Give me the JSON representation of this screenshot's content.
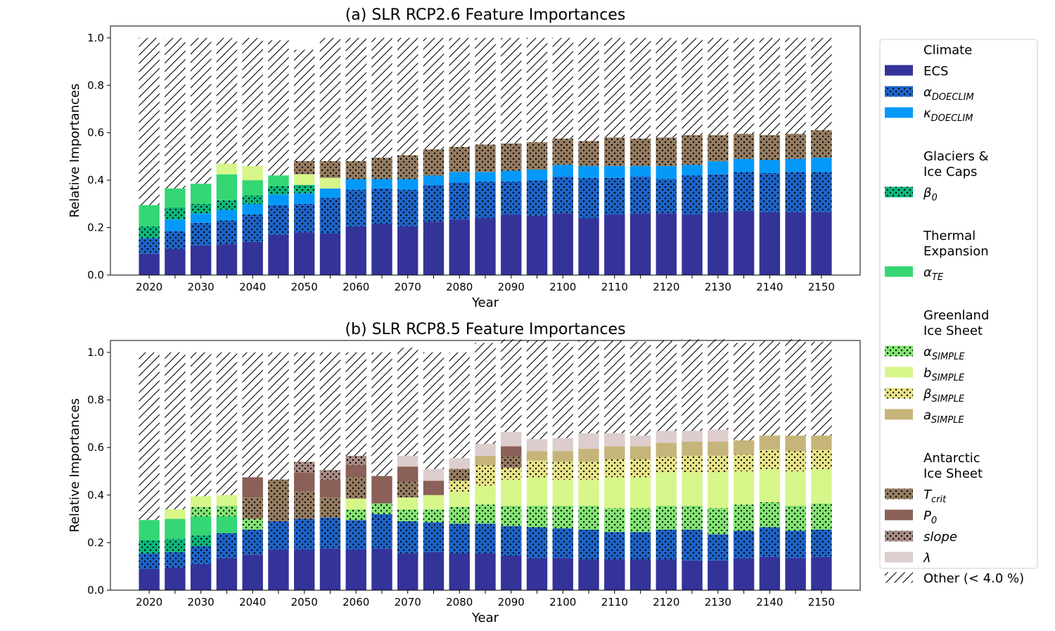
{
  "chart_data": [
    {
      "type": "bar",
      "stacked": true,
      "title": "(a) SLR RCP2.6 Feature Importances",
      "xlabel": "Year",
      "ylabel": "Relative Importances",
      "ylim": [
        0,
        1.05
      ],
      "yticks": [
        "0.0",
        "0.2",
        "0.4",
        "0.6",
        "0.8",
        "1.0"
      ],
      "xticks": [
        "2020",
        "2030",
        "2040",
        "2050",
        "2060",
        "2070",
        "2080",
        "2090",
        "2100",
        "2110",
        "2120",
        "2130",
        "2140",
        "2150"
      ],
      "x": [
        2020,
        2025,
        2030,
        2035,
        2040,
        2045,
        2050,
        2055,
        2060,
        2065,
        2070,
        2075,
        2080,
        2085,
        2090,
        2095,
        2100,
        2105,
        2110,
        2115,
        2120,
        2125,
        2130,
        2135,
        2140,
        2145,
        2150
      ],
      "series": [
        {
          "key": "ECS",
          "values": [
            0.09,
            0.11,
            0.125,
            0.13,
            0.14,
            0.17,
            0.18,
            0.175,
            0.205,
            0.215,
            0.205,
            0.225,
            0.235,
            0.24,
            0.255,
            0.25,
            0.26,
            0.24,
            0.255,
            0.26,
            0.26,
            0.255,
            0.265,
            0.27,
            0.265,
            0.265,
            0.265
          ]
        },
        {
          "key": "alpha_doeclim",
          "values": [
            0.065,
            0.075,
            0.095,
            0.1,
            0.115,
            0.125,
            0.12,
            0.15,
            0.155,
            0.15,
            0.155,
            0.155,
            0.155,
            0.155,
            0.14,
            0.15,
            0.155,
            0.17,
            0.155,
            0.155,
            0.145,
            0.165,
            0.16,
            0.165,
            0.165,
            0.17,
            0.17
          ]
        },
        {
          "key": "kappa_doeclim",
          "values": [
            0,
            0.05,
            0.04,
            0.045,
            0.045,
            0.045,
            0.045,
            0.04,
            0.045,
            0.04,
            0.045,
            0.04,
            0.045,
            0.04,
            0.045,
            0.045,
            0.05,
            0.05,
            0.05,
            0.045,
            0.055,
            0.045,
            0.055,
            0.055,
            0.055,
            0.055,
            0.06
          ]
        },
        {
          "key": "beta0",
          "values": [
            0.05,
            0.05,
            0.04,
            0.04,
            0.035,
            0.035,
            0.035,
            0,
            0,
            0,
            0,
            0,
            0,
            0,
            0,
            0,
            0,
            0,
            0,
            0,
            0,
            0,
            0,
            0,
            0,
            0,
            0
          ]
        },
        {
          "key": "alpha_te",
          "values": [
            0.09,
            0.08,
            0.085,
            0.11,
            0.065,
            0.045,
            0,
            0,
            0,
            0,
            0,
            0,
            0,
            0,
            0,
            0,
            0,
            0,
            0,
            0,
            0,
            0,
            0,
            0,
            0,
            0,
            0
          ]
        },
        {
          "key": "b_simple",
          "values": [
            0,
            0,
            0,
            0.045,
            0.06,
            0,
            0.045,
            0.045,
            0,
            0,
            0,
            0,
            0,
            0,
            0,
            0,
            0,
            0,
            0,
            0,
            0,
            0,
            0,
            0,
            0,
            0,
            0
          ]
        },
        {
          "key": "T_crit",
          "values": [
            0,
            0,
            0,
            0,
            0,
            0,
            0.055,
            0.07,
            0.075,
            0.09,
            0.1,
            0.11,
            0.105,
            0.115,
            0.115,
            0.115,
            0.11,
            0.105,
            0.12,
            0.115,
            0.12,
            0.125,
            0.11,
            0.105,
            0.105,
            0.105,
            0.115
          ]
        },
        {
          "key": "other",
          "values": [
            0.705,
            0.635,
            0.615,
            0.53,
            0.54,
            0.57,
            0.47,
            0.52,
            0.52,
            0.505,
            0.495,
            0.47,
            0.46,
            0.45,
            0.445,
            0.44,
            0.425,
            0.435,
            0.42,
            0.425,
            0.42,
            0.41,
            0.41,
            0.405,
            0.41,
            0.405,
            0.39
          ]
        }
      ]
    },
    {
      "type": "bar",
      "stacked": true,
      "title": "(b) SLR RCP8.5 Feature Importances",
      "xlabel": "Year",
      "ylabel": "Relative Importances",
      "ylim": [
        0,
        1.05
      ],
      "yticks": [
        "0.0",
        "0.2",
        "0.4",
        "0.6",
        "0.8",
        "1.0"
      ],
      "xticks": [
        "2020",
        "2030",
        "2040",
        "2050",
        "2060",
        "2070",
        "2080",
        "2090",
        "2100",
        "2110",
        "2120",
        "2130",
        "2140",
        "2150"
      ],
      "x": [
        2020,
        2025,
        2030,
        2035,
        2040,
        2045,
        2050,
        2055,
        2060,
        2065,
        2070,
        2075,
        2080,
        2085,
        2090,
        2095,
        2100,
        2105,
        2110,
        2115,
        2120,
        2125,
        2130,
        2135,
        2140,
        2145,
        2150
      ],
      "series": [
        {
          "key": "ECS",
          "values": [
            0.09,
            0.095,
            0.11,
            0.135,
            0.15,
            0.17,
            0.17,
            0.175,
            0.17,
            0.175,
            0.155,
            0.16,
            0.155,
            0.155,
            0.145,
            0.135,
            0.135,
            0.13,
            0.13,
            0.13,
            0.13,
            0.125,
            0.125,
            0.135,
            0.14,
            0.135,
            0.14
          ]
        },
        {
          "key": "alpha_doeclim",
          "values": [
            0.065,
            0.065,
            0.075,
            0.105,
            0.105,
            0.12,
            0.13,
            0.13,
            0.125,
            0.145,
            0.135,
            0.125,
            0.125,
            0.125,
            0.125,
            0.13,
            0.125,
            0.125,
            0.115,
            0.115,
            0.125,
            0.13,
            0.11,
            0.115,
            0.125,
            0.115,
            0.115
          ]
        },
        {
          "key": "beta0",
          "values": [
            0.055,
            0.055,
            0.045,
            0,
            0,
            0,
            0,
            0,
            0,
            0,
            0,
            0,
            0,
            0,
            0,
            0,
            0,
            0,
            0,
            0,
            0,
            0,
            0,
            0,
            0,
            0,
            0
          ]
        },
        {
          "key": "alpha_te",
          "values": [
            0.085,
            0.085,
            0.08,
            0.07,
            0,
            0,
            0,
            0,
            0,
            0,
            0,
            0,
            0,
            0,
            0,
            0,
            0,
            0,
            0,
            0,
            0,
            0,
            0,
            0,
            0,
            0,
            0
          ]
        },
        {
          "key": "alpha_simple",
          "values": [
            0,
            0,
            0.04,
            0.045,
            0.045,
            0,
            0,
            0,
            0.045,
            0.045,
            0.05,
            0.055,
            0.07,
            0.08,
            0.085,
            0.09,
            0.095,
            0.1,
            0.1,
            0.1,
            0.1,
            0.1,
            0.11,
            0.11,
            0.105,
            0.105,
            0.11
          ]
        },
        {
          "key": "b_simple",
          "values": [
            0,
            0.04,
            0.045,
            0.045,
            0,
            0,
            0,
            0,
            0.045,
            0,
            0.05,
            0.06,
            0.065,
            0.08,
            0.11,
            0.12,
            0.11,
            0.11,
            0.13,
            0.13,
            0.14,
            0.14,
            0.15,
            0.14,
            0.14,
            0.145,
            0.145
          ]
        },
        {
          "key": "beta_simple",
          "values": [
            0,
            0,
            0,
            0,
            0,
            0,
            0,
            0,
            0,
            0,
            0,
            0,
            0.045,
            0.085,
            0.05,
            0.07,
            0.075,
            0.075,
            0.075,
            0.075,
            0.065,
            0.07,
            0.07,
            0.07,
            0.08,
            0.085,
            0.08
          ]
        },
        {
          "key": "a_simple",
          "values": [
            0,
            0,
            0,
            0,
            0,
            0,
            0,
            0,
            0,
            0,
            0,
            0,
            0,
            0.04,
            0,
            0.04,
            0.045,
            0.055,
            0.055,
            0.055,
            0.06,
            0.06,
            0.06,
            0.06,
            0.06,
            0.065,
            0.06
          ]
        },
        {
          "key": "T_crit",
          "values": [
            0,
            0,
            0,
            0,
            0.09,
            0.175,
            0.115,
            0.085,
            0.09,
            0,
            0.065,
            0,
            0.05,
            0,
            0.045,
            0,
            0,
            0,
            0,
            0,
            0,
            0,
            0,
            0,
            0,
            0,
            0
          ]
        },
        {
          "key": "P0",
          "values": [
            0,
            0,
            0,
            0,
            0.085,
            0,
            0.08,
            0.075,
            0.05,
            0.115,
            0.065,
            0.06,
            0,
            0,
            0.045,
            0,
            0,
            0,
            0,
            0,
            0,
            0,
            0,
            0,
            0,
            0,
            0
          ]
        },
        {
          "key": "slope",
          "values": [
            0,
            0,
            0,
            0,
            0,
            0,
            0.045,
            0.04,
            0.04,
            0,
            0,
            0,
            0,
            0,
            0,
            0,
            0,
            0,
            0,
            0,
            0,
            0,
            0,
            0,
            0,
            0,
            0
          ]
        },
        {
          "key": "lambda",
          "values": [
            0,
            0,
            0,
            0,
            0,
            0,
            0,
            0,
            0,
            0,
            0.045,
            0.05,
            0.045,
            0.05,
            0.06,
            0.05,
            0.055,
            0.065,
            0.055,
            0.045,
            0.05,
            0.045,
            0.05,
            0,
            0,
            0,
            0
          ]
        },
        {
          "key": "other",
          "values": [
            0.705,
            0.66,
            0.605,
            0.6,
            0.525,
            0.535,
            0.46,
            0.495,
            0.435,
            0.52,
            0.455,
            0.49,
            0.445,
            0.425,
            0.39,
            0.415,
            0.4,
            0.39,
            0.39,
            0.395,
            0.38,
            0.385,
            0.38,
            0.41,
            0.4,
            0.405,
            0.395
          ]
        }
      ]
    }
  ],
  "legend": {
    "placement": "right",
    "groups": [
      {
        "heading": [
          "Climate"
        ],
        "items": [
          {
            "key": "ECS",
            "base": "ECS",
            "sub": "",
            "italic": false,
            "color": "#34339a",
            "pattern": "none"
          },
          {
            "key": "alpha_doeclim",
            "base": "α",
            "sub": "DOECLIM",
            "italic": true,
            "color": "#1d64c8",
            "pattern": "dots"
          },
          {
            "key": "kappa_doeclim",
            "base": "κ",
            "sub": "DOECLIM",
            "italic": true,
            "color": "#0499f8",
            "pattern": "none"
          }
        ]
      },
      {
        "heading": [
          "Glaciers &",
          "Ice Caps"
        ],
        "items": [
          {
            "key": "beta0",
            "base": "β",
            "sub": "0",
            "italic": true,
            "color": "#0bb77a",
            "pattern": "dots"
          }
        ]
      },
      {
        "heading": [
          "Thermal",
          "Expansion"
        ],
        "items": [
          {
            "key": "alpha_te",
            "base": "α",
            "sub": "TE",
            "italic": true,
            "color": "#35d674",
            "pattern": "none"
          }
        ]
      },
      {
        "heading": [
          "Greenland",
          "Ice Sheet"
        ],
        "items": [
          {
            "key": "alpha_simple",
            "base": "α",
            "sub": "SIMPLE",
            "italic": true,
            "color": "#83e473",
            "pattern": "dots"
          },
          {
            "key": "b_simple",
            "base": "b",
            "sub": "SIMPLE",
            "italic": true,
            "color": "#d7f68a",
            "pattern": "none"
          },
          {
            "key": "beta_simple",
            "base": "β",
            "sub": "SIMPLE",
            "italic": true,
            "color": "#e8e488",
            "pattern": "dots"
          },
          {
            "key": "a_simple",
            "base": "a",
            "sub": "SIMPLE",
            "italic": true,
            "color": "#c6b57a",
            "pattern": "none"
          }
        ]
      },
      {
        "heading": [
          "Antarctic",
          "Ice Sheet"
        ],
        "items": [
          {
            "key": "T_crit",
            "base": "T",
            "sub": "crit",
            "italic": true,
            "color": "#957c61",
            "pattern": "dots"
          },
          {
            "key": "P0",
            "base": "P",
            "sub": "0",
            "italic": true,
            "color": "#8b6058",
            "pattern": "none"
          },
          {
            "key": "slope",
            "base": "slope",
            "sub": "",
            "italic": true,
            "color": "#a78b84",
            "pattern": "dots"
          },
          {
            "key": "lambda",
            "base": "λ",
            "sub": "",
            "italic": true,
            "color": "#ddcdcd",
            "pattern": "none"
          }
        ]
      }
    ],
    "other_label": "Other (< 4.0 %)"
  }
}
